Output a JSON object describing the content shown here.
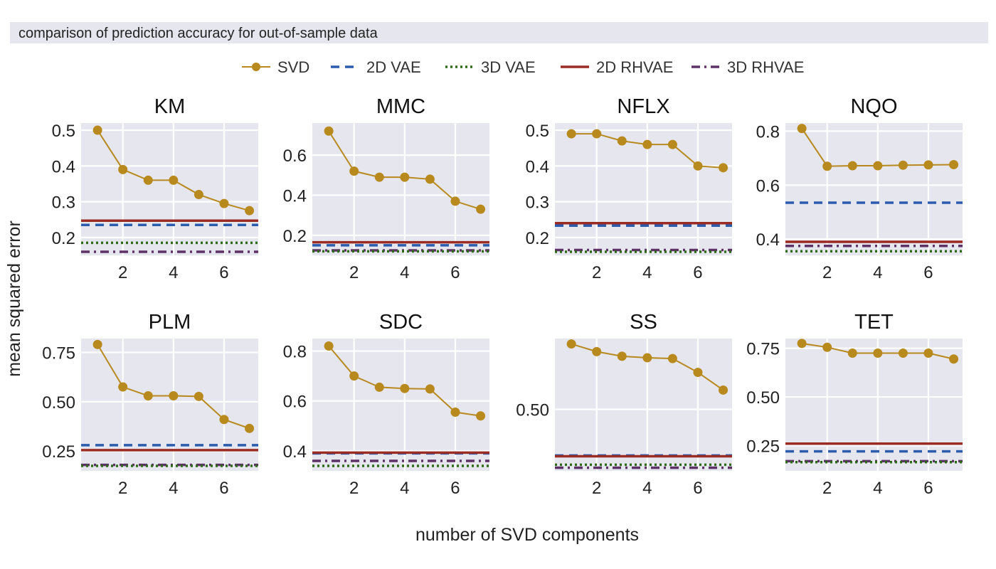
{
  "figure_title": "comparison of prediction accuracy for out-of-sample data",
  "xlabel": "number of SVD components",
  "ylabel": "mean squared error",
  "legend": [
    {
      "name": "SVD",
      "color": "#b8891c",
      "style": "solid-marker"
    },
    {
      "name": "2D VAE",
      "color": "#2b5cad",
      "style": "dashed"
    },
    {
      "name": "3D VAE",
      "color": "#2e6b16",
      "style": "dotted"
    },
    {
      "name": "2D RHVAE",
      "color": "#9a2c24",
      "style": "solid"
    },
    {
      "name": "3D RHVAE",
      "color": "#5e3266",
      "style": "dashdot"
    }
  ],
  "chart_data": [
    {
      "type": "line",
      "title": "KM",
      "x": [
        1,
        2,
        3,
        4,
        5,
        6,
        7
      ],
      "svd": [
        0.5,
        0.39,
        0.36,
        0.36,
        0.32,
        0.295,
        0.275
      ],
      "ylim": [
        0.15,
        0.52
      ],
      "yticks": [
        0.2,
        0.3,
        0.4,
        0.5
      ],
      "ytick_labels": [
        "0.2",
        "0.3",
        "0.4",
        "0.5"
      ],
      "xticks": [
        2,
        4,
        6
      ],
      "baselines": {
        "2D VAE": 0.235,
        "3D VAE": 0.185,
        "2D RHVAE": 0.247,
        "3D RHVAE": 0.16
      }
    },
    {
      "type": "line",
      "title": "MMC",
      "x": [
        1,
        2,
        3,
        4,
        5,
        6,
        7
      ],
      "svd": [
        0.72,
        0.52,
        0.49,
        0.49,
        0.48,
        0.37,
        0.33
      ],
      "ylim": [
        0.1,
        0.76
      ],
      "yticks": [
        0.2,
        0.4,
        0.6
      ],
      "ytick_labels": [
        "0.2",
        "0.4",
        "0.6"
      ],
      "xticks": [
        2,
        4,
        6
      ],
      "baselines": {
        "2D VAE": 0.15,
        "3D VAE": 0.12,
        "2D RHVAE": 0.165,
        "3D RHVAE": 0.125
      }
    },
    {
      "type": "line",
      "title": "NFLX",
      "x": [
        1,
        2,
        3,
        4,
        5,
        6,
        7
      ],
      "svd": [
        0.49,
        0.49,
        0.47,
        0.46,
        0.46,
        0.4,
        0.395
      ],
      "ylim": [
        0.15,
        0.52
      ],
      "yticks": [
        0.2,
        0.3,
        0.4,
        0.5
      ],
      "ytick_labels": [
        "0.2",
        "0.3",
        "0.4",
        "0.5"
      ],
      "xticks": [
        2,
        4,
        6
      ],
      "baselines": {
        "2D VAE": 0.233,
        "3D VAE": 0.16,
        "2D RHVAE": 0.24,
        "3D RHVAE": 0.165
      }
    },
    {
      "type": "line",
      "title": "NQO",
      "x": [
        1,
        2,
        3,
        4,
        5,
        6,
        7
      ],
      "svd": [
        0.81,
        0.67,
        0.672,
        0.672,
        0.674,
        0.675,
        0.676
      ],
      "ylim": [
        0.34,
        0.83
      ],
      "yticks": [
        0.4,
        0.6,
        0.8
      ],
      "ytick_labels": [
        "0.4",
        "0.6",
        "0.8"
      ],
      "xticks": [
        2,
        4,
        6
      ],
      "baselines": {
        "2D VAE": 0.535,
        "3D VAE": 0.355,
        "2D RHVAE": 0.39,
        "3D RHVAE": 0.375
      }
    },
    {
      "type": "line",
      "title": "PLM",
      "x": [
        1,
        2,
        3,
        4,
        5,
        6,
        7
      ],
      "svd": [
        0.79,
        0.575,
        0.53,
        0.53,
        0.527,
        0.41,
        0.365
      ],
      "ylim": [
        0.15,
        0.82
      ],
      "yticks": [
        0.25,
        0.5,
        0.75
      ],
      "ytick_labels": [
        "0.25",
        "0.50",
        "0.75"
      ],
      "xticks": [
        2,
        4,
        6
      ],
      "baselines": {
        "2D VAE": 0.28,
        "3D VAE": 0.175,
        "2D RHVAE": 0.255,
        "3D RHVAE": 0.18
      }
    },
    {
      "type": "line",
      "title": "SDC",
      "x": [
        1,
        2,
        3,
        4,
        5,
        6,
        7
      ],
      "svd": [
        0.82,
        0.7,
        0.655,
        0.65,
        0.648,
        0.555,
        0.54
      ],
      "ylim": [
        0.32,
        0.85
      ],
      "yticks": [
        0.4,
        0.6,
        0.8
      ],
      "ytick_labels": [
        "0.4",
        "0.6",
        "0.8"
      ],
      "xticks": [
        2,
        4,
        6
      ],
      "baselines": {
        "2D VAE": 0.39,
        "3D VAE": 0.34,
        "2D RHVAE": 0.393,
        "3D RHVAE": 0.36
      }
    },
    {
      "type": "line",
      "title": "SS",
      "x": [
        1,
        2,
        3,
        4,
        5,
        6,
        7
      ],
      "svd": [
        0.585,
        0.575,
        0.569,
        0.567,
        0.566,
        0.548,
        0.525
      ],
      "ylim": [
        0.42,
        0.592
      ],
      "yticks": [
        0.5
      ],
      "ytick_labels": [
        "0.50"
      ],
      "xticks": [
        2,
        4,
        6
      ],
      "baselines": {
        "2D VAE": 0.44,
        "3D VAE": 0.428,
        "2D RHVAE": 0.439,
        "3D RHVAE": 0.424
      }
    },
    {
      "type": "line",
      "title": "TET",
      "x": [
        1,
        2,
        3,
        4,
        5,
        6,
        7
      ],
      "svd": [
        0.775,
        0.755,
        0.725,
        0.725,
        0.725,
        0.725,
        0.695
      ],
      "ylim": [
        0.12,
        0.8
      ],
      "yticks": [
        0.25,
        0.5,
        0.75
      ],
      "ytick_labels": [
        "0.25",
        "0.50",
        "0.75"
      ],
      "xticks": [
        2,
        4,
        6
      ],
      "baselines": {
        "2D VAE": 0.22,
        "3D VAE": 0.165,
        "2D RHVAE": 0.26,
        "3D RHVAE": 0.17
      }
    }
  ]
}
